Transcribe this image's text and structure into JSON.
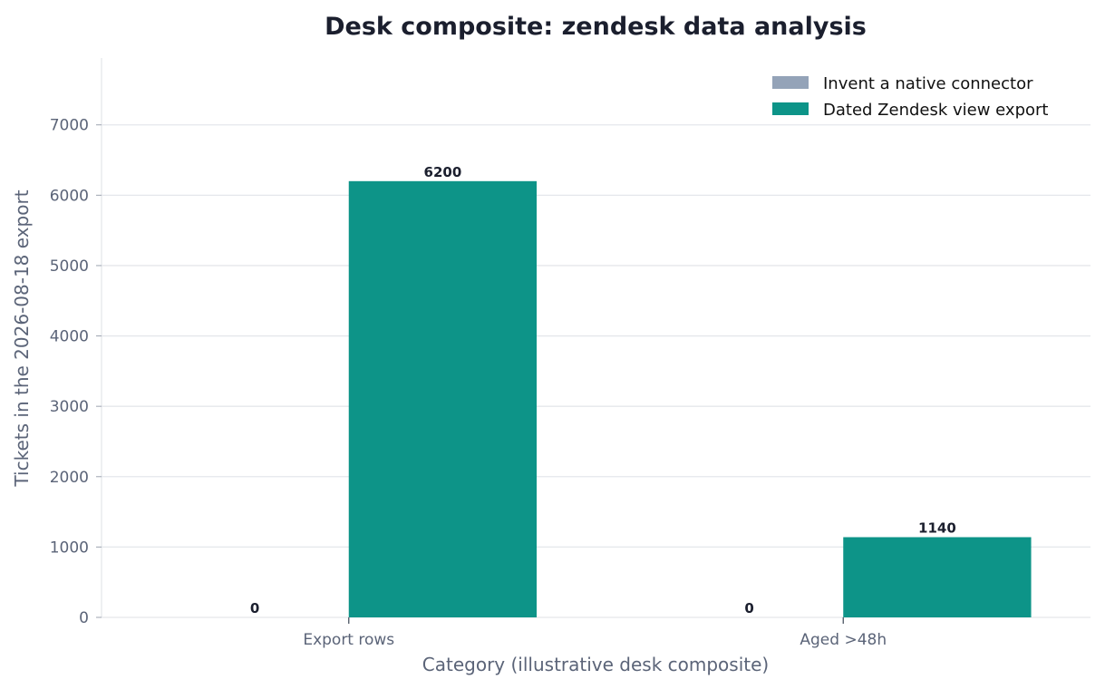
{
  "chart_data": {
    "type": "bar",
    "title": "Desk composite: zendesk data analysis",
    "xlabel": "Category (illustrative desk composite)",
    "ylabel": "Tickets in the 2026-08-18 export",
    "categories": [
      "Export rows",
      "Aged >48h"
    ],
    "series": [
      {
        "name": "Invent a native connector",
        "values": [
          0,
          0
        ],
        "color": "#94a3b8"
      },
      {
        "name": "Dated Zendesk view export",
        "values": [
          6200,
          1140
        ],
        "color": "#0d9488"
      }
    ],
    "ylim": [
      0,
      7950
    ],
    "yticks": [
      0,
      1000,
      2000,
      3000,
      4000,
      5000,
      6000,
      7000
    ],
    "grid": "horizontal",
    "legend_position": "top-right"
  }
}
